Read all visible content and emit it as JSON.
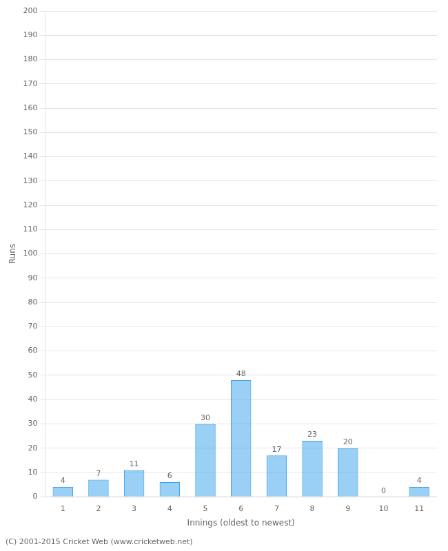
{
  "chart_data": {
    "type": "bar",
    "xlabel": "Innings (oldest to newest)",
    "ylabel": "Runs",
    "categories": [
      1,
      2,
      3,
      4,
      5,
      6,
      7,
      8,
      9,
      10,
      11
    ],
    "values": [
      4,
      7,
      11,
      6,
      30,
      48,
      17,
      23,
      20,
      0,
      4
    ],
    "ylim": [
      0,
      200
    ],
    "yticks": [
      0,
      10,
      20,
      30,
      40,
      50,
      60,
      70,
      80,
      90,
      100,
      110,
      120,
      130,
      140,
      150,
      160,
      170,
      180,
      190,
      200
    ],
    "grid": true,
    "data_labels": true,
    "annotations": [
      "(C) 2001-2015 Cricket Web (www.cricketweb.net)"
    ]
  }
}
